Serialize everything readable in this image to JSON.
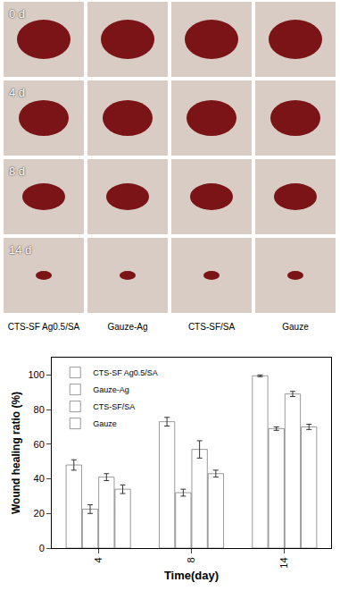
{
  "figure": {
    "row_labels": [
      "0 d",
      "4 d",
      "8 d",
      "14 d"
    ],
    "column_labels": [
      "CTS-SF Ag0.5/SA",
      "Gauze-Ag",
      "CTS-SF/SA",
      "Gauze"
    ]
  },
  "chart_data": {
    "type": "bar",
    "x_label": "Time(day)",
    "y_label": "Wound healing ratio (%)",
    "categories": [
      "4",
      "8",
      "14"
    ],
    "series": [
      {
        "name": "CTS-SF Ag0.5/SA",
        "color": "#9ccbec",
        "values": [
          48,
          73,
          99.5
        ],
        "errors": [
          3,
          2.5,
          0.5
        ]
      },
      {
        "name": "Gauze-Ag",
        "color": "#f0ee3a",
        "values": [
          22.5,
          32,
          69
        ],
        "errors": [
          2.5,
          2,
          1
        ]
      },
      {
        "name": "CTS-SF/SA",
        "color": "#ee4456",
        "values": [
          41,
          57,
          89
        ],
        "errors": [
          2,
          5,
          1.5
        ]
      },
      {
        "name": "Gauze",
        "color": "#58d846",
        "values": [
          34,
          43,
          70
        ],
        "errors": [
          2.5,
          2,
          1.5
        ]
      }
    ],
    "ylim": [
      0,
      110
    ],
    "yticks": [
      0,
      20,
      40,
      60,
      80,
      100
    ],
    "legend": "upper left",
    "grid": false
  }
}
